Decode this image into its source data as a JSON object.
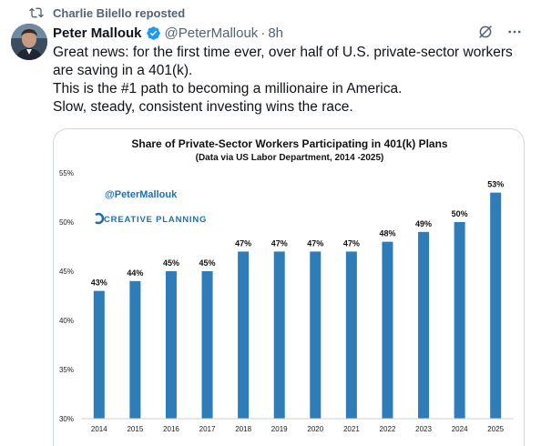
{
  "repost": {
    "text": "Charlie Bilello reposted",
    "icon": "repost-icon"
  },
  "author": {
    "name": "Peter Mallouk",
    "handle": "@PeterMallouk",
    "separator": "·",
    "time": "8h",
    "avatar_icon": "avatar",
    "verified_icon": "verified-badge-icon",
    "verified_color": "#1d9bf0"
  },
  "header_icons": [
    "grok-icon",
    "more-icon"
  ],
  "tweet": {
    "lines": [
      "Great news: for the first time ever, over half of U.S. private-sector workers",
      "are saving in a 401(k).",
      "This is the #1 path to becoming a millionaire in America.",
      "Slow, steady, consistent investing wins the race."
    ]
  },
  "chart_data": {
    "type": "bar",
    "title": "Share of Private-Sector Workers Participating in 401(k) Plans",
    "subtitle": "(Data via US Labor Department, 2014 -2025)",
    "watermark_handle": "@PeterMallouk",
    "watermark_brand": "CREATIVE PLANNING",
    "categories": [
      "2014",
      "2015",
      "2016",
      "2017",
      "2018",
      "2019",
      "2020",
      "2021",
      "2022",
      "2023",
      "2024",
      "2025"
    ],
    "values": [
      43,
      44,
      45,
      45,
      47,
      47,
      47,
      47,
      48,
      49,
      50,
      53
    ],
    "data_labels": [
      "43%",
      "44%",
      "45%",
      "45%",
      "47%",
      "47%",
      "47%",
      "47%",
      "48%",
      "49%",
      "50%",
      "53%"
    ],
    "y_ticks": [
      30,
      35,
      40,
      45,
      50,
      55
    ],
    "y_tick_labels": [
      "30%",
      "35%",
      "40%",
      "45%",
      "50%",
      "55%"
    ],
    "ylim": [
      30,
      55
    ],
    "grid": false,
    "bar_color": "#2e7db8",
    "brand_color": "#1f6fae",
    "xlabel": "",
    "ylabel": ""
  }
}
